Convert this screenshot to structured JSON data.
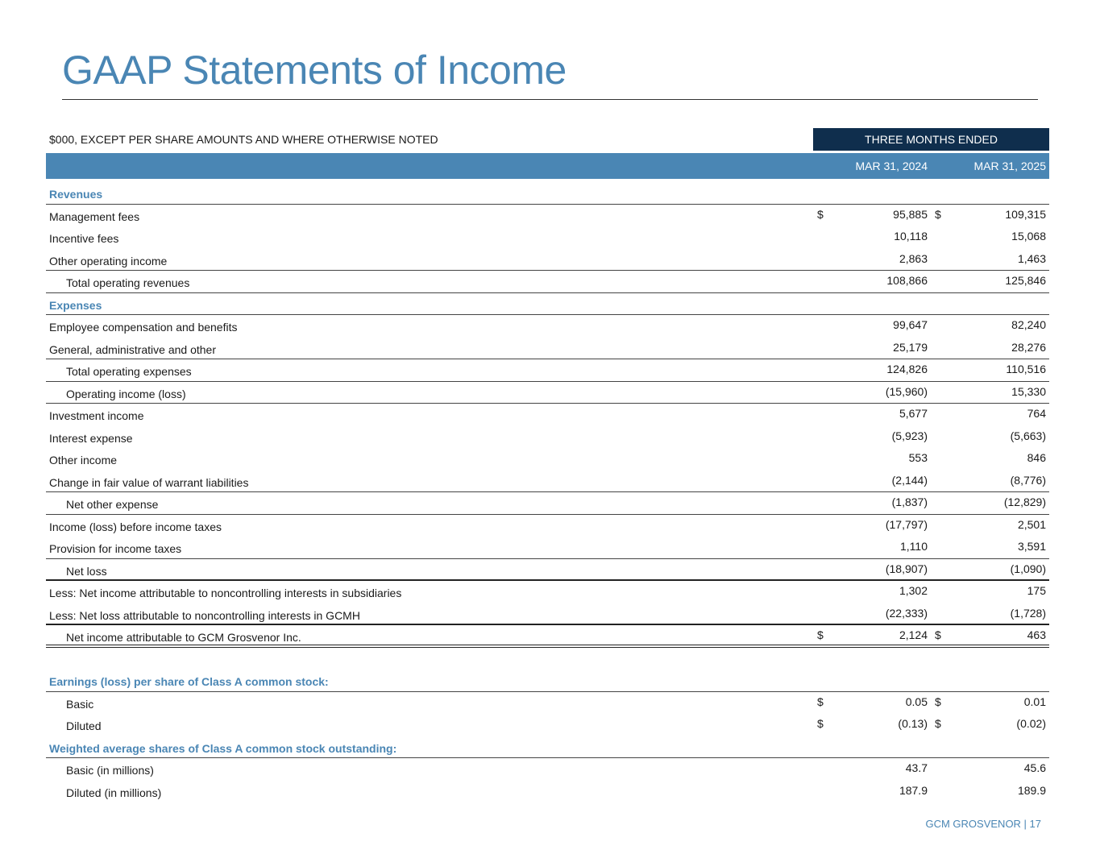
{
  "title": "GAAP Statements of Income",
  "units_note": "$000, EXCEPT PER SHARE AMOUNTS AND WHERE OTHERWISE NOTED",
  "period_header": "THREE MONTHS ENDED",
  "columns": [
    "MAR 31, 2024",
    "MAR 31, 2025"
  ],
  "rows": [
    {
      "label": "Revenues",
      "section": true
    },
    {
      "label": "Management fees",
      "v1": "95,885",
      "v2": "109,315",
      "d1": "$",
      "d2": "$"
    },
    {
      "label": "Incentive fees",
      "v1": "10,118",
      "v2": "15,068"
    },
    {
      "label": "Other operating income",
      "v1": "2,863",
      "v2": "1,463"
    },
    {
      "label": "Total operating revenues",
      "v1": "108,866",
      "v2": "125,846",
      "indent": true
    },
    {
      "label": "Expenses",
      "section": true
    },
    {
      "label": "Employee compensation and benefits",
      "v1": "99,647",
      "v2": "82,240"
    },
    {
      "label": "General, administrative and other",
      "v1": "25,179",
      "v2": "28,276"
    },
    {
      "label": "Total operating expenses",
      "v1": "124,826",
      "v2": "110,516",
      "indent": true
    },
    {
      "label": "Operating income (loss)",
      "v1": "(15,960)",
      "v2": "15,330",
      "indent": true
    },
    {
      "label": "Investment income",
      "v1": "5,677",
      "v2": "764"
    },
    {
      "label": "Interest expense",
      "v1": "(5,923)",
      "v2": "(5,663)"
    },
    {
      "label": "Other income",
      "v1": "553",
      "v2": "846"
    },
    {
      "label": "Change in fair value of warrant liabilities",
      "v1": "(2,144)",
      "v2": "(8,776)"
    },
    {
      "label": "Net other expense",
      "v1": "(1,837)",
      "v2": "(12,829)",
      "indent": true
    },
    {
      "label": "Income (loss) before income taxes",
      "v1": "(17,797)",
      "v2": "2,501"
    },
    {
      "label": "Provision for income taxes",
      "v1": "1,110",
      "v2": "3,591"
    },
    {
      "label": "Net loss",
      "v1": "(18,907)",
      "v2": "(1,090)",
      "indent": true
    },
    {
      "label": "Less: Net income attributable to noncontrolling interests in subsidiaries",
      "v1": "1,302",
      "v2": "175"
    },
    {
      "label": "Less: Net loss attributable to noncontrolling interests in GCMH",
      "v1": "(22,333)",
      "v2": "(1,728)"
    },
    {
      "label": "Net income attributable to GCM Grosvenor Inc.",
      "v1": "2,124",
      "v2": "463",
      "d1": "$",
      "d2": "$",
      "indent": true
    },
    {
      "label": ""
    },
    {
      "label": "Earnings (loss) per share of Class A common stock:",
      "section": true
    },
    {
      "label": "Basic",
      "v1": "0.05",
      "v2": "0.01",
      "d1": "$",
      "d2": "$",
      "indent": true
    },
    {
      "label": "Diluted",
      "v1": "(0.13)",
      "v2": "(0.02)",
      "d1": "$",
      "d2": "$",
      "indent": true
    },
    {
      "label": "Weighted average shares of Class A common stock outstanding:",
      "section": true
    },
    {
      "label": "Basic (in millions)",
      "v1": "43.7",
      "v2": "45.6",
      "indent": true
    },
    {
      "label": "Diluted (in millions)",
      "v1": "187.9",
      "v2": "189.9",
      "indent": true
    }
  ],
  "footer": "GCM GROSVENOR | 17",
  "colors": {
    "accent": "#4a86b4",
    "header_dark": "#0f2e4d"
  }
}
